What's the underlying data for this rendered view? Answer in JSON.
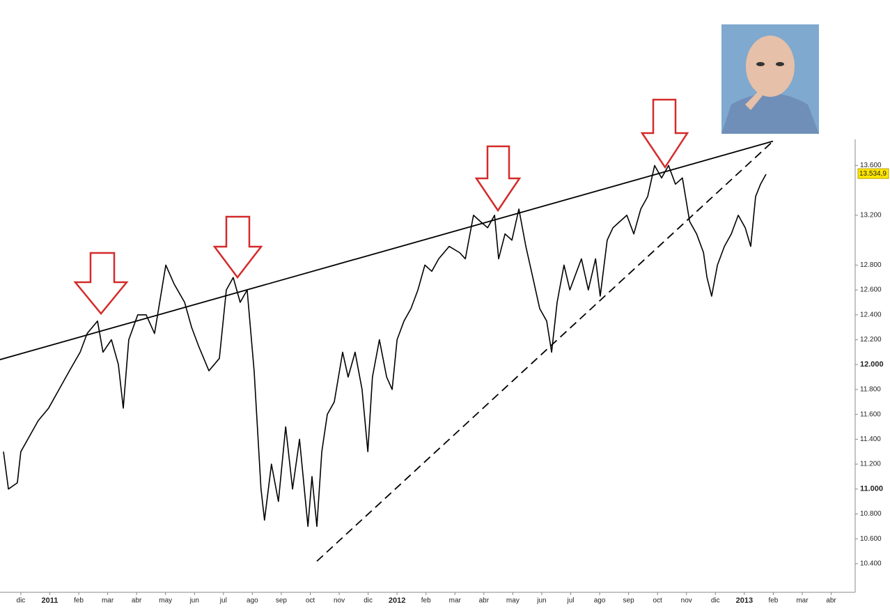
{
  "chart_data": {
    "type": "line",
    "xlim": [
      -0.72,
      28.83
    ],
    "xticks": [
      {
        "value": 0,
        "label": "dic"
      },
      {
        "value": 1,
        "label": "2011"
      },
      {
        "value": 2,
        "label": "feb"
      },
      {
        "value": 3,
        "label": "mar"
      },
      {
        "value": 4,
        "label": "abr"
      },
      {
        "value": 5,
        "label": "may"
      },
      {
        "value": 6,
        "label": "jun"
      },
      {
        "value": 7,
        "label": "jul"
      },
      {
        "value": 8,
        "label": "ago"
      },
      {
        "value": 9,
        "label": "sep"
      },
      {
        "value": 10,
        "label": "oct"
      },
      {
        "value": 11,
        "label": "nov"
      },
      {
        "value": 12,
        "label": "dic"
      },
      {
        "value": 13,
        "label": "2012"
      },
      {
        "value": 14,
        "label": "feb"
      },
      {
        "value": 15,
        "label": "mar"
      },
      {
        "value": 16,
        "label": "abr"
      },
      {
        "value": 17,
        "label": "may"
      },
      {
        "value": 18,
        "label": "jun"
      },
      {
        "value": 19,
        "label": "jul"
      },
      {
        "value": 20,
        "label": "ago"
      },
      {
        "value": 21,
        "label": "sep"
      },
      {
        "value": 22,
        "label": "oct"
      },
      {
        "value": 23,
        "label": "nov"
      },
      {
        "value": 24,
        "label": "dic"
      },
      {
        "value": 25,
        "label": "2013"
      },
      {
        "value": 26,
        "label": "feb"
      },
      {
        "value": 27,
        "label": "mar"
      },
      {
        "value": 28,
        "label": "abr"
      }
    ],
    "ylim": [
      10170,
      13810
    ],
    "yticks": [
      {
        "value": 10400,
        "label": "10.400"
      },
      {
        "value": 10600,
        "label": "10.600"
      },
      {
        "value": 10800,
        "label": "10.800"
      },
      {
        "value": 11000,
        "label": "11.000"
      },
      {
        "value": 11200,
        "label": "11.200"
      },
      {
        "value": 11400,
        "label": "11.400"
      },
      {
        "value": 11600,
        "label": "11.600"
      },
      {
        "value": 11800,
        "label": "11.800"
      },
      {
        "value": 12000,
        "label": "12.000"
      },
      {
        "value": 12200,
        "label": "12.200"
      },
      {
        "value": 12400,
        "label": "12.400"
      },
      {
        "value": 12600,
        "label": "12.600"
      },
      {
        "value": 12800,
        "label": "12.800"
      },
      {
        "value": 13200,
        "label": "13.200"
      },
      {
        "value": 13600,
        "label": "13.600"
      }
    ],
    "series": [
      {
        "color": "#000000",
        "x": [
          -0.6,
          -0.43,
          -0.12,
          0,
          0.24,
          0.6,
          0.96,
          1.32,
          1.68,
          2.05,
          2.29,
          2.65,
          2.84,
          3.13,
          3.37,
          3.54,
          3.73,
          4.04,
          4.33,
          4.62,
          5.01,
          5.29,
          5.66,
          5.9,
          6.14,
          6.5,
          6.86,
          7.1,
          7.34,
          7.58,
          7.82,
          8.06,
          8.3,
          8.42,
          8.66,
          8.9,
          9.15,
          9.39,
          9.63,
          9.92,
          10.06,
          10.23,
          10.4,
          10.59,
          10.83,
          11.12,
          11.31,
          11.55,
          11.79,
          11.99,
          12.15,
          12.39,
          12.64,
          12.83,
          13.0,
          13.24,
          13.48,
          13.72,
          13.96,
          14.2,
          14.44,
          14.8,
          15.16,
          15.36,
          15.64,
          15.88,
          16.13,
          16.37,
          16.51,
          16.73,
          16.97,
          17.21,
          17.45,
          17.69,
          17.93,
          18.17,
          18.34,
          18.53,
          18.77,
          18.97,
          19.13,
          19.37,
          19.61,
          19.86,
          20.02,
          20.26,
          20.46,
          20.7,
          20.94,
          21.18,
          21.42,
          21.66,
          21.9,
          22.14,
          22.38,
          22.62,
          22.86,
          23.11,
          23.35,
          23.59,
          23.71,
          23.87,
          24.07,
          24.31,
          24.55,
          24.79,
          25.03,
          25.22,
          25.39,
          25.56,
          25.75
        ],
        "values": [
          11300,
          11000,
          11050,
          11300,
          11400,
          11550,
          11650,
          11800,
          11950,
          12100,
          12250,
          12350,
          12100,
          12200,
          12000,
          11650,
          12200,
          12400,
          12400,
          12250,
          12800,
          12650,
          12500,
          12300,
          12150,
          11950,
          12050,
          12600,
          12700,
          12500,
          12600,
          11950,
          11000,
          10750,
          11200,
          10900,
          11500,
          11000,
          11400,
          10700,
          11100,
          10700,
          11300,
          11600,
          11700,
          12100,
          11900,
          12100,
          11800,
          11300,
          11900,
          12200,
          11900,
          11800,
          12200,
          12350,
          12450,
          12600,
          12800,
          12750,
          12850,
          12950,
          12900,
          12850,
          13200,
          13150,
          13100,
          13200,
          12850,
          13050,
          13000,
          13250,
          12950,
          12700,
          12450,
          12350,
          12100,
          12500,
          12800,
          12600,
          12700,
          12850,
          12600,
          12850,
          12550,
          13000,
          13100,
          13150,
          13200,
          13050,
          13250,
          13350,
          13600,
          13500,
          13600,
          13450,
          13500,
          13150,
          13050,
          12900,
          12700,
          12550,
          12800,
          12950,
          13050,
          13200,
          13100,
          12950,
          13350,
          13450,
          13530
        ]
      }
    ],
    "trendlines": [
      {
        "style": "solid",
        "x": [
          -0.72,
          25.99
        ],
        "y": [
          12040,
          13795
        ]
      },
      {
        "style": "dashed",
        "x": [
          10.23,
          25.99
        ],
        "y": [
          10420,
          13795
        ]
      }
    ],
    "last_value": {
      "value": 13534.9,
      "label": "13.534,9"
    }
  }
}
